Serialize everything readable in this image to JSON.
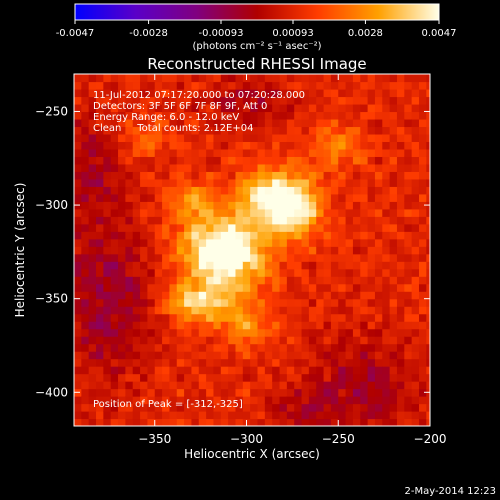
{
  "colorbar": {
    "tick_labels": [
      "-0.0047",
      "-0.0028",
      "-0.00093",
      "0.00093",
      "0.0028",
      "0.0047"
    ],
    "tick_values": [
      -0.0047,
      -0.0028,
      -0.00093,
      0.00093,
      0.0028,
      0.0047
    ],
    "range": [
      -0.0047,
      0.0047
    ],
    "unit_label": "(photons cm⁻² s⁻¹ asec⁻²)",
    "colormap": [
      "#0000ff",
      "#5a00c8",
      "#800080",
      "#b00000",
      "#ff3c00",
      "#ffa000",
      "#ffffe8"
    ]
  },
  "footer": {
    "timestamp": "2-May-2014 12:23"
  },
  "chart_data": {
    "type": "heatmap",
    "title": "Reconstructed RHESSI Image",
    "xlabel": "Heliocentric X (arcsec)",
    "ylabel": "Heliocentric Y (arcsec)",
    "xlim": [
      -394,
      -200
    ],
    "ylim": [
      -418,
      -230
    ],
    "x_ticks": [
      -350,
      -300,
      -250,
      -200
    ],
    "y_ticks": [
      -250,
      -300,
      -350,
      -400
    ],
    "annotations": [
      "11-Jul-2012 07:17:20.000 to 07:20:28.000",
      "Detectors: 3F 5F 6F 7F 8F 9F, Att 0",
      "Energy Range: 6.0 - 12.0 keV",
      "Clean     Total counts: 2.12E+04",
      "Position of Peak = [-312,-325]"
    ],
    "peak": {
      "x": -312,
      "y": -325
    },
    "sources": [
      {
        "x": -312,
        "y": -325,
        "sx": 16,
        "sy": 14,
        "amp": 1.0
      },
      {
        "x": -274,
        "y": -300,
        "sx": 10,
        "sy": 11,
        "amp": 0.9
      },
      {
        "x": -292,
        "y": -295,
        "sx": 9,
        "sy": 10,
        "amp": 0.62
      },
      {
        "x": -326,
        "y": -352,
        "sx": 13,
        "sy": 7,
        "amp": 0.6
      },
      {
        "x": -300,
        "y": -365,
        "sx": 10,
        "sy": 7,
        "amp": 0.38
      },
      {
        "x": -330,
        "y": -298,
        "sx": 9,
        "sy": 9,
        "amp": 0.32
      },
      {
        "x": -250,
        "y": -268,
        "sx": 10,
        "sy": 9,
        "amp": 0.3
      },
      {
        "x": -355,
        "y": -265,
        "sx": 9,
        "sy": 7,
        "amp": 0.22
      }
    ],
    "background_level": 0.22,
    "negative_regions": [
      {
        "x": -375,
        "y": -350,
        "sx": 18,
        "sy": 30,
        "amp": -0.35
      },
      {
        "x": -385,
        "y": -280,
        "sx": 12,
        "sy": 20,
        "amp": -0.28
      },
      {
        "x": -300,
        "y": -245,
        "sx": 18,
        "sy": 10,
        "amp": -0.25
      },
      {
        "x": -235,
        "y": -395,
        "sx": 20,
        "sy": 18,
        "amp": -0.3
      },
      {
        "x": -270,
        "y": -410,
        "sx": 15,
        "sy": 8,
        "amp": -0.2
      }
    ]
  }
}
